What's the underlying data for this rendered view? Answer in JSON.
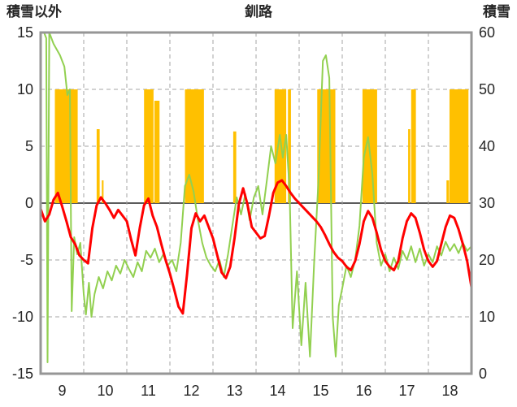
{
  "header": {
    "left_label": "積雪以外",
    "title": "釧路",
    "right_label": "積雪"
  },
  "chart_data": {
    "type": "line",
    "title": "釧路",
    "legend": "none",
    "grid": "dashed",
    "x_axis": {
      "range": [
        9,
        19
      ],
      "tick_labels": [
        "9",
        "10",
        "11",
        "12",
        "13",
        "14",
        "15",
        "16",
        "17",
        "18"
      ],
      "tick_positions": [
        9.5,
        10.5,
        11.5,
        12.5,
        13.5,
        14.5,
        15.5,
        16.5,
        17.5,
        18.5
      ],
      "gridlines": [
        10,
        11,
        12,
        13,
        14,
        15,
        16,
        17,
        18
      ]
    },
    "left_axis": {
      "label": "積雪以外",
      "range": [
        -15,
        15
      ],
      "ticks": [
        15,
        10,
        5,
        0,
        -5,
        -10,
        -15
      ]
    },
    "right_axis": {
      "label": "積雪",
      "range": [
        0,
        60
      ],
      "ticks": [
        60,
        50,
        40,
        30,
        20,
        10,
        0
      ]
    },
    "colors": {
      "bars": "#FFC000",
      "temperature": "#FF0000",
      "green_line": "#92D050",
      "snow": "#4B2E83",
      "grid": "#A6A6A6",
      "zero_line": "#262626",
      "frame": "#969696",
      "text": "#262626"
    },
    "series": [
      {
        "name": "sunshine-bars",
        "type": "bar",
        "axis": "left",
        "color_key": "bars",
        "bars": [
          {
            "x": 9.33,
            "w": 0.53,
            "h": 10
          },
          {
            "x": 10.3,
            "w": 0.07,
            "h": 6.5
          },
          {
            "x": 10.42,
            "w": 0.04,
            "h": 2
          },
          {
            "x": 11.4,
            "w": 0.22,
            "h": 10
          },
          {
            "x": 11.64,
            "w": 0.12,
            "h": 9
          },
          {
            "x": 12.35,
            "w": 0.44,
            "h": 10
          },
          {
            "x": 13.47,
            "w": 0.07,
            "h": 6.3
          },
          {
            "x": 14.43,
            "w": 0.27,
            "h": 10
          },
          {
            "x": 14.74,
            "w": 0.07,
            "h": 10
          },
          {
            "x": 15.42,
            "w": 0.42,
            "h": 10
          },
          {
            "x": 16.47,
            "w": 0.34,
            "h": 10
          },
          {
            "x": 17.53,
            "w": 0.05,
            "h": 6.5
          },
          {
            "x": 17.6,
            "w": 0.11,
            "h": 10
          },
          {
            "x": 18.42,
            "w": 0.06,
            "h": 2
          },
          {
            "x": 18.49,
            "w": 0.44,
            "h": 10
          }
        ]
      },
      {
        "name": "green-line",
        "type": "line",
        "axis": "left",
        "color_key": "green_line",
        "width": 2,
        "points": [
          [
            9.03,
            15
          ],
          [
            9.08,
            15
          ],
          [
            9.13,
            14.5
          ],
          [
            9.16,
            -14
          ],
          [
            9.2,
            15
          ],
          [
            9.3,
            14
          ],
          [
            9.45,
            13
          ],
          [
            9.55,
            12
          ],
          [
            9.62,
            9.5
          ],
          [
            9.68,
            10
          ],
          [
            9.72,
            -9.5
          ],
          [
            9.78,
            -3
          ],
          [
            9.85,
            -4.5
          ],
          [
            9.92,
            -3.5
          ],
          [
            10.0,
            -8
          ],
          [
            10.05,
            -9.8
          ],
          [
            10.12,
            -7
          ],
          [
            10.18,
            -10
          ],
          [
            10.25,
            -8
          ],
          [
            10.35,
            -6.5
          ],
          [
            10.45,
            -7.5
          ],
          [
            10.55,
            -6
          ],
          [
            10.65,
            -6.8
          ],
          [
            10.75,
            -5.5
          ],
          [
            10.85,
            -6.2
          ],
          [
            10.95,
            -5
          ],
          [
            11.05,
            -5.8
          ],
          [
            11.15,
            -6.5
          ],
          [
            11.25,
            -5.2
          ],
          [
            11.35,
            -6
          ],
          [
            11.45,
            -4.2
          ],
          [
            11.55,
            -4.8
          ],
          [
            11.65,
            -4
          ],
          [
            11.75,
            -5.2
          ],
          [
            11.85,
            -4.5
          ],
          [
            11.95,
            -5.5
          ],
          [
            12.05,
            -5
          ],
          [
            12.15,
            -6
          ],
          [
            12.25,
            -3.5
          ],
          [
            12.35,
            1.5
          ],
          [
            12.45,
            2.5
          ],
          [
            12.55,
            1
          ],
          [
            12.65,
            -1.5
          ],
          [
            12.75,
            -3.5
          ],
          [
            12.85,
            -4.8
          ],
          [
            12.95,
            -5.5
          ],
          [
            13.05,
            -6
          ],
          [
            13.15,
            -5
          ],
          [
            13.25,
            -6.5
          ],
          [
            13.35,
            -4.5
          ],
          [
            13.45,
            -2
          ],
          [
            13.55,
            0.5
          ],
          [
            13.65,
            -1
          ],
          [
            13.75,
            0.8
          ],
          [
            13.85,
            -1.5
          ],
          [
            13.95,
            0.5
          ],
          [
            14.05,
            1.5
          ],
          [
            14.15,
            -1
          ],
          [
            14.25,
            2
          ],
          [
            14.35,
            5
          ],
          [
            14.45,
            3.5
          ],
          [
            14.55,
            6
          ],
          [
            14.62,
            4
          ],
          [
            14.7,
            6
          ],
          [
            14.78,
            1
          ],
          [
            14.85,
            -11
          ],
          [
            14.95,
            -6
          ],
          [
            15.05,
            -12.5
          ],
          [
            15.15,
            -7
          ],
          [
            15.25,
            -13.5
          ],
          [
            15.35,
            -5
          ],
          [
            15.45,
            2
          ],
          [
            15.55,
            12.5
          ],
          [
            15.62,
            13
          ],
          [
            15.7,
            11
          ],
          [
            15.78,
            -10
          ],
          [
            15.85,
            -13.5
          ],
          [
            15.92,
            -9
          ],
          [
            16.0,
            -7.5
          ],
          [
            16.1,
            -5.5
          ],
          [
            16.2,
            -6.5
          ],
          [
            16.3,
            -5
          ],
          [
            16.4,
            -2
          ],
          [
            16.5,
            4
          ],
          [
            16.6,
            5.8
          ],
          [
            16.7,
            2.5
          ],
          [
            16.8,
            -3.5
          ],
          [
            16.9,
            -5.5
          ],
          [
            17.0,
            -4.5
          ],
          [
            17.1,
            -6
          ],
          [
            17.2,
            -4.8
          ],
          [
            17.3,
            -5.8
          ],
          [
            17.4,
            -4.2
          ],
          [
            17.5,
            -5
          ],
          [
            17.6,
            -3.8
          ],
          [
            17.7,
            -5.2
          ],
          [
            17.8,
            -4
          ],
          [
            17.9,
            -5.5
          ],
          [
            18.0,
            -4.5
          ],
          [
            18.1,
            -5.2
          ],
          [
            18.2,
            -3.8
          ],
          [
            18.3,
            -4.6
          ],
          [
            18.4,
            -3.4
          ],
          [
            18.5,
            -4.2
          ],
          [
            18.6,
            -3.6
          ],
          [
            18.7,
            -4.4
          ],
          [
            18.8,
            -3.5
          ],
          [
            18.9,
            -4.2
          ],
          [
            19.0,
            -3.8
          ]
        ]
      },
      {
        "name": "temperature-line",
        "type": "line",
        "axis": "left",
        "color_key": "temperature",
        "width": 3,
        "points": [
          [
            9.0,
            -0.5
          ],
          [
            9.1,
            -1.6
          ],
          [
            9.2,
            -1
          ],
          [
            9.3,
            0.3
          ],
          [
            9.4,
            0.9
          ],
          [
            9.5,
            -0.3
          ],
          [
            9.6,
            -1.6
          ],
          [
            9.7,
            -3
          ],
          [
            9.8,
            -3.6
          ],
          [
            9.9,
            -4.6
          ],
          [
            10.0,
            -5
          ],
          [
            10.1,
            -5.3
          ],
          [
            10.2,
            -2.2
          ],
          [
            10.3,
            -0.2
          ],
          [
            10.4,
            0.5
          ],
          [
            10.5,
            0
          ],
          [
            10.6,
            -0.6
          ],
          [
            10.7,
            -1.3
          ],
          [
            10.8,
            -0.6
          ],
          [
            10.9,
            -1.1
          ],
          [
            11.0,
            -1.6
          ],
          [
            11.1,
            -3.2
          ],
          [
            11.2,
            -4.6
          ],
          [
            11.3,
            -2.2
          ],
          [
            11.4,
            -0.2
          ],
          [
            11.5,
            0.4
          ],
          [
            11.6,
            -1.1
          ],
          [
            11.7,
            -2.1
          ],
          [
            11.8,
            -3.6
          ],
          [
            11.9,
            -5
          ],
          [
            12.0,
            -6.2
          ],
          [
            12.1,
            -7.6
          ],
          [
            12.2,
            -9.1
          ],
          [
            12.3,
            -9.7
          ],
          [
            12.4,
            -6.2
          ],
          [
            12.5,
            -2.2
          ],
          [
            12.6,
            -0.9
          ],
          [
            12.7,
            -1.6
          ],
          [
            12.8,
            -1.1
          ],
          [
            12.9,
            -2.1
          ],
          [
            13.0,
            -3.1
          ],
          [
            13.1,
            -4.6
          ],
          [
            13.2,
            -6.1
          ],
          [
            13.3,
            -6.6
          ],
          [
            13.4,
            -5.6
          ],
          [
            13.5,
            -3.1
          ],
          [
            13.6,
            -0.1
          ],
          [
            13.7,
            1.3
          ],
          [
            13.8,
            -0.1
          ],
          [
            13.9,
            -2.1
          ],
          [
            14.0,
            -2.6
          ],
          [
            14.1,
            -3.1
          ],
          [
            14.2,
            -2.9
          ],
          [
            14.3,
            -1.1
          ],
          [
            14.4,
            0.9
          ],
          [
            14.5,
            1.8
          ],
          [
            14.6,
            2
          ],
          [
            14.7,
            1.5
          ],
          [
            14.8,
            0.9
          ],
          [
            14.9,
            0.4
          ],
          [
            15.0,
            0
          ],
          [
            15.1,
            -0.4
          ],
          [
            15.2,
            -0.8
          ],
          [
            15.3,
            -1.2
          ],
          [
            15.4,
            -1.6
          ],
          [
            15.5,
            -2.1
          ],
          [
            15.6,
            -2.8
          ],
          [
            15.7,
            -3.6
          ],
          [
            15.8,
            -4.3
          ],
          [
            15.9,
            -4.8
          ],
          [
            16.0,
            -5.1
          ],
          [
            16.1,
            -5.6
          ],
          [
            16.2,
            -5.9
          ],
          [
            16.3,
            -5.1
          ],
          [
            16.4,
            -3.6
          ],
          [
            16.5,
            -1.6
          ],
          [
            16.6,
            -0.7
          ],
          [
            16.7,
            -1.3
          ],
          [
            16.8,
            -2.6
          ],
          [
            16.9,
            -4.1
          ],
          [
            17.0,
            -5.1
          ],
          [
            17.1,
            -5.6
          ],
          [
            17.2,
            -5.9
          ],
          [
            17.3,
            -5.1
          ],
          [
            17.4,
            -3.1
          ],
          [
            17.5,
            -1.6
          ],
          [
            17.6,
            -0.9
          ],
          [
            17.7,
            -1.3
          ],
          [
            17.8,
            -2.6
          ],
          [
            17.9,
            -4.1
          ],
          [
            18.0,
            -5.1
          ],
          [
            18.1,
            -5.6
          ],
          [
            18.2,
            -5.1
          ],
          [
            18.3,
            -3.6
          ],
          [
            18.4,
            -2.1
          ],
          [
            18.5,
            -1.1
          ],
          [
            18.6,
            -1.3
          ],
          [
            18.7,
            -2.3
          ],
          [
            18.8,
            -3.6
          ],
          [
            18.9,
            -5.1
          ],
          [
            19.0,
            -7.4
          ]
        ]
      },
      {
        "name": "snow-depth-line",
        "type": "line",
        "axis": "right",
        "color_key": "snow",
        "width": 3,
        "points": [
          [
            9.0,
            0
          ],
          [
            19.0,
            0
          ]
        ]
      }
    ]
  }
}
